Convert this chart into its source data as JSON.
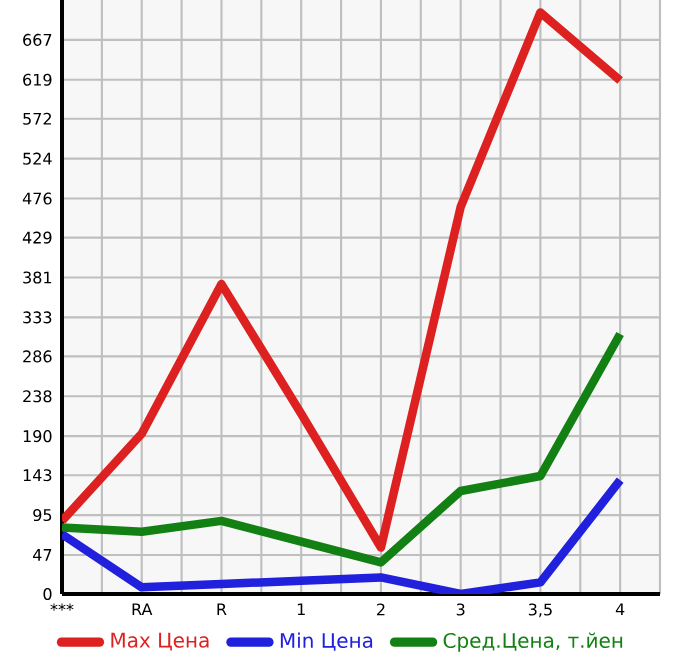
{
  "chart_data": {
    "type": "line",
    "categories": [
      "***",
      "RA",
      "R",
      "1",
      "2",
      "3",
      "3,5",
      "4"
    ],
    "series": [
      {
        "name": "Max Цена",
        "color": "#dd2020",
        "values": [
          88,
          193,
          373,
          217,
          56,
          466,
          700,
          618
        ]
      },
      {
        "name": "Min Цена",
        "color": "#2020dd",
        "values": [
          72,
          8,
          12,
          16,
          20,
          0,
          14,
          137
        ]
      },
      {
        "name": "Сред.Цена, т.йен",
        "color": "#138013",
        "values": [
          80,
          75,
          88,
          63,
          38,
          124,
          142,
          313
        ]
      }
    ],
    "ylim": [
      0,
      715
    ],
    "yticks": [
      0,
      47,
      95,
      143,
      190,
      238,
      286,
      333,
      381,
      429,
      476,
      524,
      572,
      619,
      667
    ],
    "grid": true,
    "legend": "bottom",
    "marker": "none",
    "line_style": "solid"
  }
}
